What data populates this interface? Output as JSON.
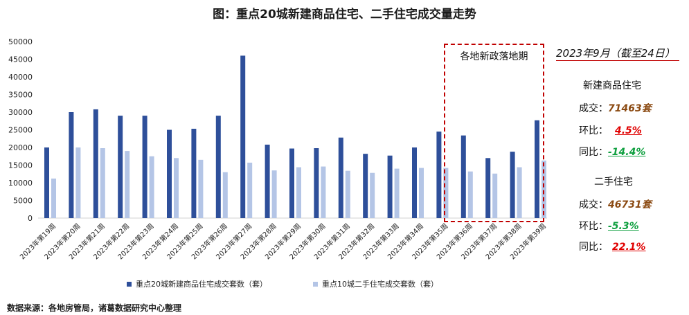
{
  "title": "图：重点20城新建商品住宅、二手住宅成交量走势",
  "source": "数据来源：各地房管局，诸葛数据研究中心整理",
  "policy_label": "各地新政落地期",
  "side": {
    "period": "2023年9月（截至24日）",
    "new": {
      "heading": "新建商品住宅",
      "deal_label": "成交：",
      "deal_value": "71463套",
      "mom_label": "环比：",
      "mom_value": "4.5%",
      "yoy_label": "同比：",
      "yoy_value": "-14.4%"
    },
    "second": {
      "heading": "二手住宅",
      "deal_label": "成交：",
      "deal_value": "46731套",
      "mom_label": "环比：",
      "mom_value": "-5.3%",
      "yoy_label": "同比：",
      "yoy_value": "22.1%"
    }
  },
  "colors": {
    "new_series": "#2e4f9a",
    "second_series": "#b4c5e6",
    "policy_border": "#c00000"
  },
  "chart_data": {
    "type": "bar",
    "categories": [
      "2023年第19周",
      "2023年第20周",
      "2023年第21周",
      "2023年第22周",
      "2023年第23周",
      "2023年第24周",
      "2023年第25周",
      "2023年第26周",
      "2023年第27周",
      "2023年第28周",
      "2023年第29周",
      "2023年第30周",
      "2023年第31周",
      "2023年第32周",
      "2023年第33周",
      "2023年第34周",
      "2023年第35周",
      "2023年第36周",
      "2023年第37周",
      "2023年第38周",
      "2023年第39周"
    ],
    "series": [
      {
        "name": "重点20城新建商品住宅成交套数（套）",
        "values": [
          20000,
          30000,
          30800,
          29000,
          29000,
          25000,
          25300,
          29000,
          46000,
          20800,
          19700,
          19800,
          22800,
          18200,
          17700,
          20000,
          24500,
          23400,
          17000,
          18800,
          27700
        ]
      },
      {
        "name": "重点10城二手住宅成交套数（套）",
        "values": [
          11200,
          20000,
          19800,
          19000,
          17500,
          17000,
          16500,
          13000,
          15700,
          13500,
          14400,
          14600,
          13400,
          12800,
          14000,
          14200,
          14200,
          13200,
          12600,
          14400,
          16300
        ]
      }
    ],
    "yticks": [
      0,
      5000,
      10000,
      15000,
      20000,
      25000,
      30000,
      35000,
      40000,
      45000,
      50000
    ],
    "ylim": [
      0,
      50000
    ],
    "grid": false,
    "legend_position": "bottom"
  }
}
